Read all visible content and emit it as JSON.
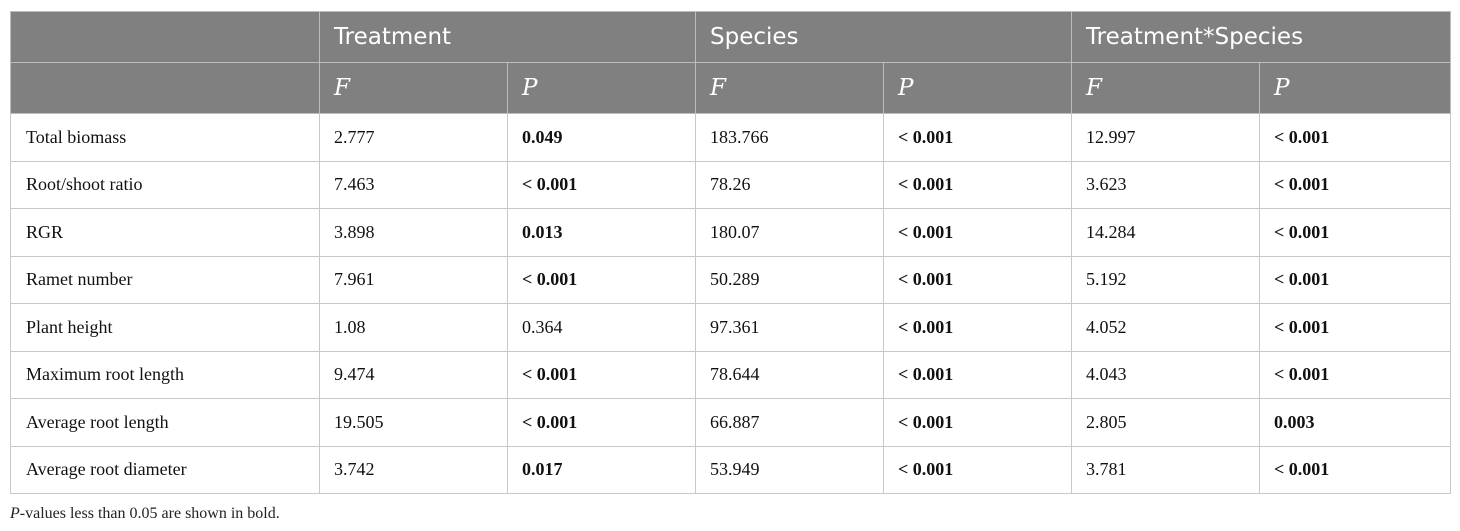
{
  "header": {
    "groups": [
      "Treatment",
      "Species",
      "Treatment*Species"
    ],
    "sub": [
      "F",
      "P",
      "F",
      "P",
      "F",
      "P"
    ]
  },
  "rows": [
    {
      "label": "Total biomass",
      "cells": [
        "2.777",
        "0.049",
        "183.766",
        "< 0.001",
        "12.997",
        "< 0.001"
      ],
      "bold": [
        false,
        true,
        false,
        true,
        false,
        true
      ]
    },
    {
      "label": "Root/shoot ratio",
      "cells": [
        "7.463",
        "< 0.001",
        "78.26",
        "< 0.001",
        "3.623",
        "< 0.001"
      ],
      "bold": [
        false,
        true,
        false,
        true,
        false,
        true
      ]
    },
    {
      "label": "RGR",
      "cells": [
        "3.898",
        "0.013",
        "180.07",
        "< 0.001",
        "14.284",
        "< 0.001"
      ],
      "bold": [
        false,
        true,
        false,
        true,
        false,
        true
      ]
    },
    {
      "label": "Ramet number",
      "cells": [
        "7.961",
        "< 0.001",
        "50.289",
        "< 0.001",
        "5.192",
        "< 0.001"
      ],
      "bold": [
        false,
        true,
        false,
        true,
        false,
        true
      ]
    },
    {
      "label": "Plant height",
      "cells": [
        "1.08",
        "0.364",
        "97.361",
        "< 0.001",
        "4.052",
        "< 0.001"
      ],
      "bold": [
        false,
        false,
        false,
        true,
        false,
        true
      ]
    },
    {
      "label": "Maximum root length",
      "cells": [
        "9.474",
        "< 0.001",
        "78.644",
        "< 0.001",
        "4.043",
        "< 0.001"
      ],
      "bold": [
        false,
        true,
        false,
        true,
        false,
        true
      ]
    },
    {
      "label": "Average root length",
      "cells": [
        "19.505",
        "< 0.001",
        "66.887",
        "< 0.001",
        "2.805",
        "0.003"
      ],
      "bold": [
        false,
        true,
        false,
        true,
        false,
        true
      ]
    },
    {
      "label": "Average root diameter",
      "cells": [
        "3.742",
        "0.017",
        "53.949",
        "< 0.001",
        "3.781",
        "< 0.001"
      ],
      "bold": [
        false,
        true,
        false,
        true,
        false,
        true
      ]
    }
  ],
  "footnote": {
    "italic_part": "P",
    "rest": "-values less than 0.05 are shown in bold."
  }
}
